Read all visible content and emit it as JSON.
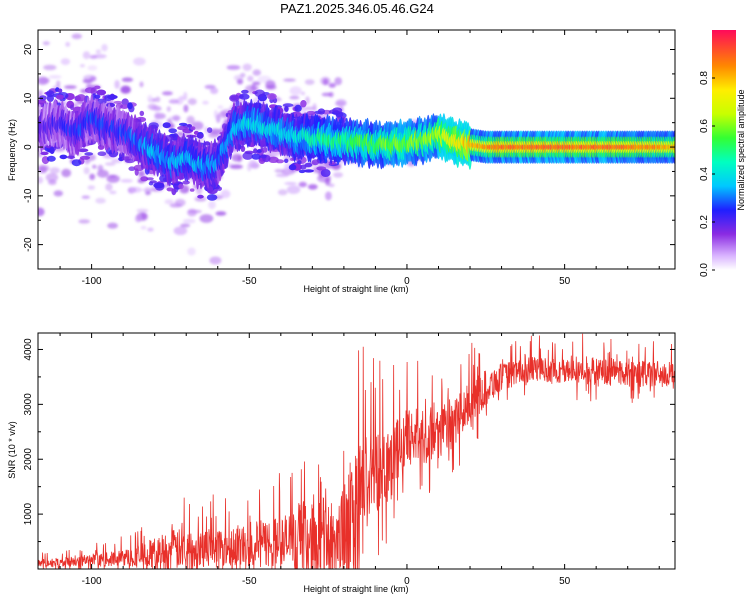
{
  "title": "PAZ1.2025.346.05.46.G24",
  "chart_data": [
    {
      "type": "heatmap",
      "title": "PAZ1.2025.346.05.46.G24",
      "xlabel": "Height of straight line (km)",
      "ylabel": "Frequency (Hz)",
      "xlim": [
        -117,
        85
      ],
      "ylim": [
        -25,
        24
      ],
      "xticks": [
        -100,
        -50,
        0,
        50
      ],
      "xtick_labels": [
        "-100",
        "-50",
        "0",
        "50"
      ],
      "yticks": [
        -20,
        -10,
        0,
        10,
        20
      ],
      "ytick_labels": [
        "-20",
        "-10",
        "0",
        "10",
        "20"
      ],
      "colorbar": {
        "label": "Normalized spectral amplitude",
        "range": [
          0,
          1
        ],
        "ticks": [
          0.0,
          0.2,
          0.4,
          0.6,
          0.8
        ],
        "tick_labels": [
          "0.0",
          "0.2",
          "0.4",
          "0.6",
          "0.8"
        ]
      },
      "ridge": {
        "x": [
          -115,
          -110,
          -105,
          -100,
          -95,
          -90,
          -85,
          -80,
          -75,
          -70,
          -65,
          -60,
          -55,
          -50,
          -45,
          -40,
          -35,
          -30,
          -25,
          -20,
          -15,
          -10,
          -5,
          0,
          5,
          10,
          15,
          20,
          25,
          30,
          40,
          50,
          60,
          70,
          80,
          85
        ],
        "freq": [
          4,
          5,
          3,
          6,
          4,
          3,
          1,
          -1,
          -3,
          -2,
          -4,
          -3,
          4,
          5,
          4,
          3,
          2,
          2,
          1.5,
          1,
          1,
          0.5,
          0.5,
          1,
          1.5,
          2.5,
          1,
          0.5,
          0,
          0,
          0,
          0,
          0,
          0,
          0,
          0
        ],
        "amplitude": [
          0.2,
          0.2,
          0.25,
          0.25,
          0.25,
          0.25,
          0.3,
          0.35,
          0.35,
          0.35,
          0.35,
          0.3,
          0.35,
          0.4,
          0.4,
          0.4,
          0.4,
          0.45,
          0.5,
          0.5,
          0.55,
          0.55,
          0.6,
          0.6,
          0.6,
          0.65,
          0.75,
          0.8,
          0.85,
          0.9,
          0.9,
          0.9,
          0.9,
          0.88,
          0.85,
          0.8
        ]
      }
    },
    {
      "type": "line",
      "xlabel": "Height of straight line (km)",
      "ylabel": "SNR (10 * v/v)",
      "xlim": [
        -117,
        85
      ],
      "ylim": [
        0,
        4300
      ],
      "xticks": [
        -100,
        -50,
        0,
        50
      ],
      "xtick_labels": [
        "-100",
        "-50",
        "0",
        "50"
      ],
      "yticks": [
        1000,
        2000,
        3000,
        4000
      ],
      "ytick_labels": [
        "1000",
        "2000",
        "3000",
        "4000"
      ],
      "color": "#e8302a",
      "envelope": {
        "x": [
          -117,
          -110,
          -100,
          -90,
          -80,
          -75,
          -70,
          -60,
          -50,
          -45,
          -40,
          -35,
          -30,
          -25,
          -20,
          -18,
          -15,
          -10,
          -5,
          0,
          5,
          10,
          15,
          20,
          25,
          30,
          40,
          50,
          60,
          70,
          80,
          85
        ],
        "mean": [
          100,
          120,
          150,
          200,
          280,
          330,
          380,
          430,
          430,
          470,
          480,
          500,
          520,
          540,
          600,
          900,
          1400,
          1800,
          2000,
          2400,
          2400,
          2500,
          2700,
          3000,
          3300,
          3500,
          3650,
          3600,
          3600,
          3580,
          3550,
          3500
        ],
        "amp": [
          80,
          90,
          110,
          150,
          300,
          400,
          350,
          350,
          400,
          450,
          500,
          600,
          700,
          800,
          900,
          1100,
          1000,
          800,
          700,
          500,
          500,
          500,
          450,
          400,
          350,
          250,
          220,
          230,
          260,
          260,
          250,
          220
        ]
      }
    }
  ]
}
